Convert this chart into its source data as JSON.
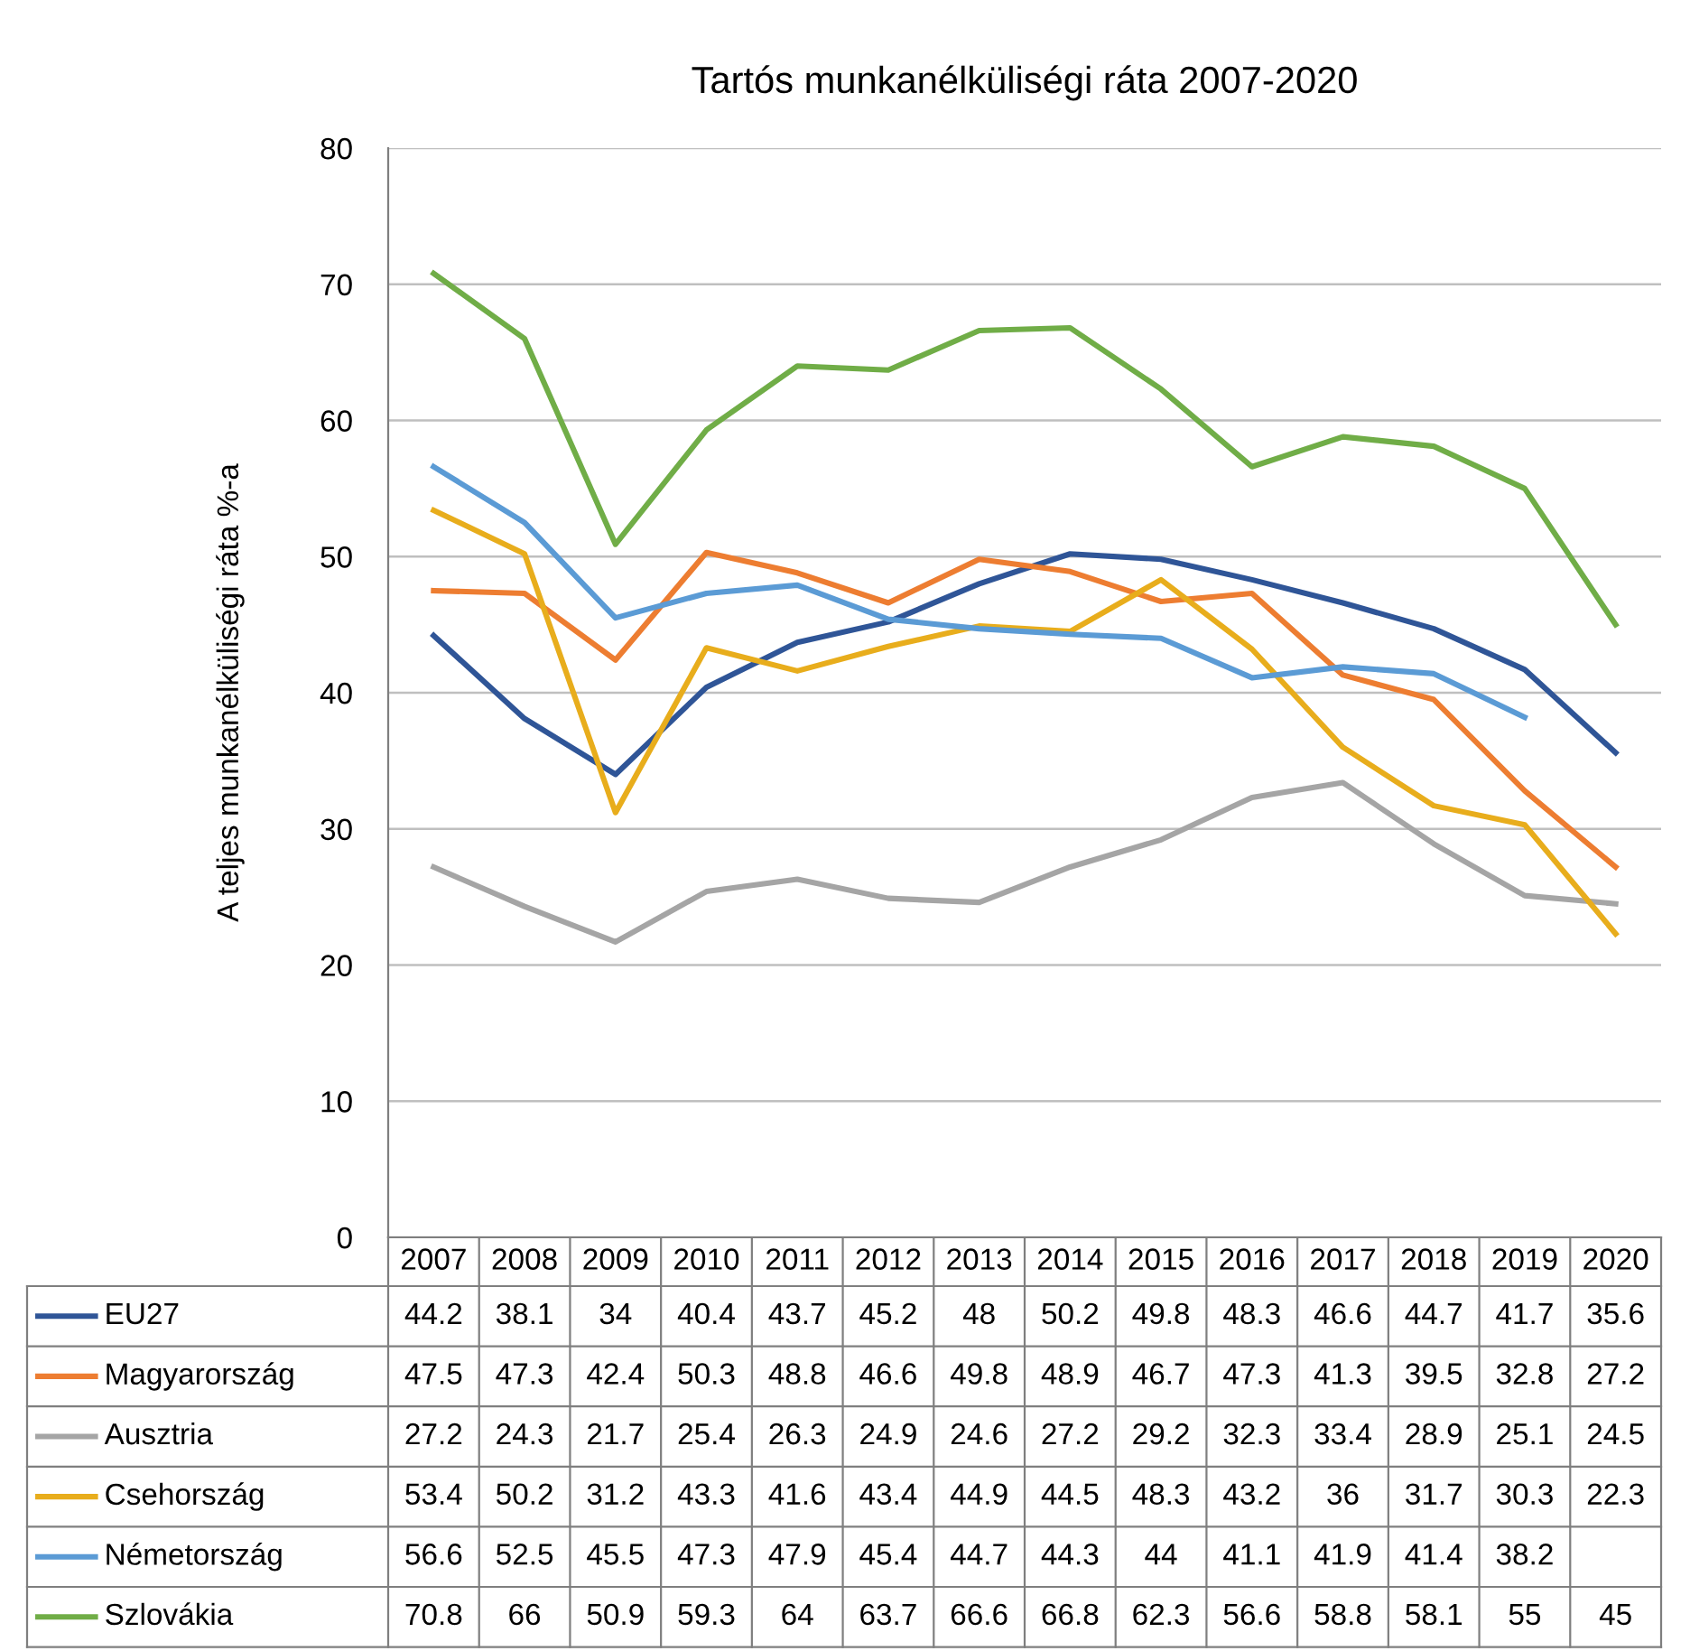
{
  "chart_data": {
    "type": "line",
    "title": "Tartós munkanélküliségi ráta 2007-2020",
    "ylabel": "A teljes munkanélküliségi ráta %-a",
    "categories": [
      "2007",
      "2008",
      "2009",
      "2010",
      "2011",
      "2012",
      "2013",
      "2014",
      "2015",
      "2016",
      "2017",
      "2018",
      "2019",
      "2020"
    ],
    "series": [
      {
        "name": "EU27",
        "color": "#2f5597",
        "values": [
          44.2,
          38.1,
          34,
          40.4,
          43.7,
          45.2,
          48,
          50.2,
          49.8,
          48.3,
          46.6,
          44.7,
          41.7,
          35.6
        ]
      },
      {
        "name": "Magyarország",
        "color": "#ed7d31",
        "values": [
          47.5,
          47.3,
          42.4,
          50.3,
          48.8,
          46.6,
          49.8,
          48.9,
          46.7,
          47.3,
          41.3,
          39.5,
          32.8,
          27.2
        ]
      },
      {
        "name": "Ausztria",
        "color": "#a5a5a5",
        "values": [
          27.2,
          24.3,
          21.7,
          25.4,
          26.3,
          24.9,
          24.6,
          27.2,
          29.2,
          32.3,
          33.4,
          28.9,
          25.1,
          24.5
        ]
      },
      {
        "name": "Csehország",
        "color": "#e8ad1c",
        "values": [
          53.4,
          50.2,
          31.2,
          43.3,
          41.6,
          43.4,
          44.9,
          44.5,
          48.3,
          43.2,
          36,
          31.7,
          30.3,
          22.3
        ]
      },
      {
        "name": "Németország",
        "color": "#5b9bd5",
        "values": [
          56.6,
          52.5,
          45.5,
          47.3,
          47.9,
          45.4,
          44.7,
          44.3,
          44,
          41.1,
          41.9,
          41.4,
          38.2,
          null
        ]
      },
      {
        "name": "Szlovákia",
        "color": "#70ad47",
        "values": [
          70.8,
          66,
          50.9,
          59.3,
          64,
          63.7,
          66.6,
          66.8,
          62.3,
          56.6,
          58.8,
          58.1,
          55,
          45
        ]
      }
    ],
    "ylim": [
      0,
      80
    ],
    "yticks": [
      0,
      10,
      20,
      30,
      40,
      50,
      60,
      70,
      80
    ],
    "grid": "y",
    "legend": "bottom",
    "data_labels": true,
    "marker": "none",
    "line_style": "solid"
  }
}
